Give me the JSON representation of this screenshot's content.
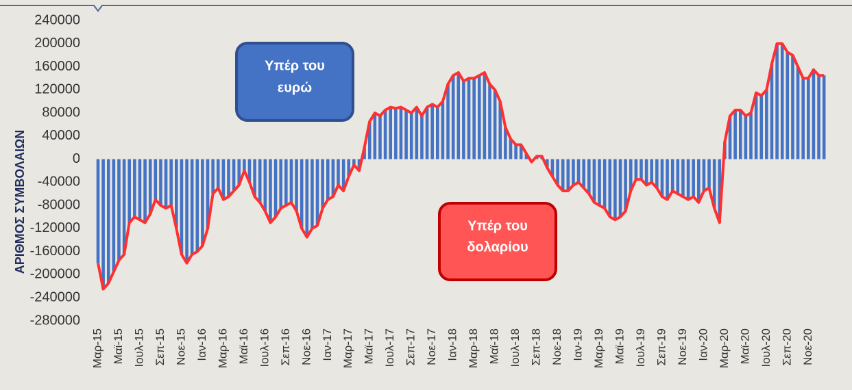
{
  "chart_data": {
    "type": "bar",
    "y_label": "ΑΡΙΘΜΟΣ ΣΥΜΒΟΛΑΙΩΝ",
    "annotations": [
      [
        "Υπέρ του",
        "ευρώ"
      ],
      [
        "Υπέρ του",
        "δολαρίου"
      ]
    ],
    "categories": [
      "Μαρ-15",
      null,
      null,
      null,
      "Μαϊ-15",
      null,
      null,
      null,
      "Ιουλ-15",
      null,
      null,
      null,
      "Σεπ-15",
      null,
      null,
      null,
      "Νοε-15",
      null,
      null,
      null,
      "Ιαν-16",
      null,
      null,
      null,
      "Μαρ-16",
      null,
      null,
      null,
      "Μαϊ-16",
      null,
      null,
      null,
      "Ιουλ-16",
      null,
      null,
      null,
      "Σεπ-16",
      null,
      null,
      null,
      "Νοε-16",
      null,
      null,
      null,
      "Ιαν-17",
      null,
      null,
      null,
      "Μαρ-17",
      null,
      null,
      null,
      "Μαϊ-17",
      null,
      null,
      null,
      "Ιουλ-17",
      null,
      null,
      null,
      "Σεπ-17",
      null,
      null,
      null,
      "Νοε-17",
      null,
      null,
      null,
      "Ιαν-18",
      null,
      null,
      null,
      "Μαρ-18",
      null,
      null,
      null,
      "Μαϊ-18",
      null,
      null,
      null,
      "Ιουλ-18",
      null,
      null,
      null,
      "Σεπ-18",
      null,
      null,
      null,
      "Νοε-18",
      null,
      null,
      null,
      "Ιαν-19",
      null,
      null,
      null,
      "Μαρ-19",
      null,
      null,
      null,
      "Μαϊ-19",
      null,
      null,
      null,
      "Ιουλ-19",
      null,
      null,
      null,
      "Σεπ-19",
      null,
      null,
      null,
      "Νοε-19",
      null,
      null,
      null,
      "Ιαν-20",
      null,
      null,
      null,
      "Μαρ-20",
      null,
      null,
      null,
      "Μαϊ-20",
      null,
      null,
      null,
      "Ιουλ-20",
      null,
      null,
      null,
      "Σεπ-20",
      null,
      null,
      null,
      "Νοε-20",
      null,
      null,
      null
    ],
    "values": [
      -180000,
      -225000,
      -215000,
      -195000,
      -175000,
      -165000,
      -110000,
      -100000,
      -105000,
      -110000,
      -95000,
      -70000,
      -80000,
      -85000,
      -80000,
      -120000,
      -165000,
      -180000,
      -165000,
      -160000,
      -150000,
      -120000,
      -60000,
      -50000,
      -70000,
      -65000,
      -55000,
      -45000,
      -20000,
      -40000,
      -65000,
      -75000,
      -90000,
      -110000,
      -100000,
      -85000,
      -80000,
      -75000,
      -90000,
      -120000,
      -135000,
      -120000,
      -115000,
      -85000,
      -70000,
      -65000,
      -45000,
      -55000,
      -30000,
      -10000,
      -20000,
      20000,
      65000,
      80000,
      75000,
      85000,
      90000,
      88000,
      90000,
      85000,
      80000,
      90000,
      75000,
      90000,
      95000,
      90000,
      100000,
      130000,
      145000,
      150000,
      135000,
      140000,
      140000,
      145000,
      150000,
      130000,
      120000,
      100000,
      55000,
      35000,
      25000,
      25000,
      10000,
      -5000,
      5000,
      5000,
      -15000,
      -30000,
      -45000,
      -55000,
      -55000,
      -45000,
      -40000,
      -50000,
      -60000,
      -75000,
      -80000,
      -85000,
      -100000,
      -105000,
      -100000,
      -90000,
      -55000,
      -35000,
      -35000,
      -45000,
      -40000,
      -50000,
      -65000,
      -70000,
      -55000,
      -60000,
      -65000,
      -70000,
      -65000,
      -75000,
      -55000,
      -50000,
      -85000,
      -110000,
      30000,
      75000,
      85000,
      85000,
      75000,
      80000,
      115000,
      110000,
      120000,
      165000,
      200000,
      200000,
      185000,
      180000,
      160000,
      140000,
      140000,
      155000,
      145000,
      145000
    ],
    "color": "#4472c4",
    "line_color": "#ff3030",
    "ylim": [
      -280000,
      240000
    ],
    "yticks": [
      240000,
      200000,
      160000,
      120000,
      80000,
      40000,
      0,
      -40000,
      -80000,
      -120000,
      -160000,
      -200000,
      -240000,
      -280000
    ]
  }
}
